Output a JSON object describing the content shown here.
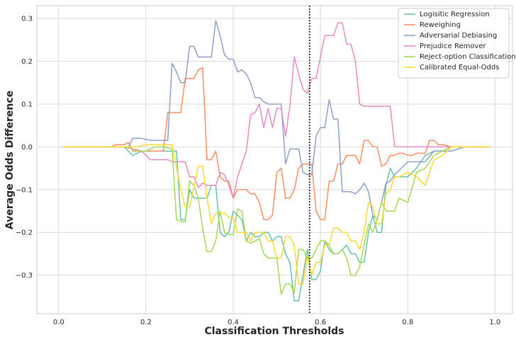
{
  "chart_data": {
    "type": "line",
    "title": "",
    "xlabel": "Classification Thresholds",
    "ylabel": "Average Odds Difference",
    "xlim": [
      -0.05,
      1.04
    ],
    "ylim": [
      -0.39,
      0.33
    ],
    "xticks": [
      0.0,
      0.2,
      0.4,
      0.6,
      0.8,
      1.0
    ],
    "xtick_labels": [
      "0.0",
      "0.2",
      "0.4",
      "0.6",
      "0.8",
      "1.0"
    ],
    "yticks": [
      -0.3,
      -0.2,
      -0.1,
      0.0,
      0.1,
      0.2,
      0.3
    ],
    "ytick_labels": [
      "−0.3",
      "−0.2",
      "−0.1",
      "0.0",
      "0.1",
      "0.2",
      "0.3"
    ],
    "grid": true,
    "legend_position": "top-right",
    "vline": {
      "x": 0.575,
      "style": "dotted",
      "color": "#222222"
    },
    "series": [
      {
        "name": "Logisitic Regression",
        "color": "#66c2a5",
        "x": [
          0.01,
          0.15,
          0.17,
          0.19,
          0.21,
          0.23,
          0.25,
          0.27,
          0.28,
          0.29,
          0.3,
          0.31,
          0.32,
          0.34,
          0.35,
          0.36,
          0.37,
          0.38,
          0.39,
          0.4,
          0.41,
          0.42,
          0.43,
          0.44,
          0.45,
          0.46,
          0.47,
          0.48,
          0.49,
          0.5,
          0.51,
          0.52,
          0.53,
          0.54,
          0.55,
          0.56,
          0.57,
          0.58,
          0.59,
          0.6,
          0.61,
          0.62,
          0.63,
          0.64,
          0.65,
          0.66,
          0.67,
          0.68,
          0.69,
          0.7,
          0.71,
          0.72,
          0.73,
          0.74,
          0.75,
          0.76,
          0.77,
          0.78,
          0.8,
          0.82,
          0.84,
          0.86,
          0.88,
          0.9,
          0.99
        ],
        "y": [
          0,
          0,
          -0.02,
          -0.01,
          -0.01,
          -0.01,
          -0.01,
          -0.01,
          -0.17,
          -0.17,
          -0.1,
          -0.12,
          -0.12,
          -0.12,
          -0.09,
          -0.09,
          -0.2,
          -0.21,
          -0.2,
          -0.15,
          -0.16,
          -0.17,
          -0.22,
          -0.2,
          -0.21,
          -0.21,
          -0.2,
          -0.2,
          -0.22,
          -0.21,
          -0.21,
          -0.25,
          -0.27,
          -0.36,
          -0.36,
          -0.3,
          -0.24,
          -0.31,
          -0.31,
          -0.29,
          -0.22,
          -0.24,
          -0.25,
          -0.25,
          -0.24,
          -0.23,
          -0.25,
          -0.25,
          -0.27,
          -0.27,
          -0.2,
          -0.16,
          -0.2,
          -0.2,
          -0.09,
          -0.05,
          -0.07,
          -0.07,
          -0.07,
          -0.05,
          -0.02,
          -0.01,
          -0.01,
          0,
          0
        ]
      },
      {
        "name": "Reweighing",
        "color": "#fc8d62",
        "x": [
          0.01,
          0.12,
          0.13,
          0.15,
          0.16,
          0.17,
          0.18,
          0.2,
          0.22,
          0.24,
          0.25,
          0.26,
          0.27,
          0.28,
          0.29,
          0.3,
          0.31,
          0.32,
          0.33,
          0.34,
          0.35,
          0.36,
          0.37,
          0.38,
          0.39,
          0.4,
          0.41,
          0.42,
          0.43,
          0.44,
          0.45,
          0.46,
          0.47,
          0.48,
          0.49,
          0.5,
          0.51,
          0.52,
          0.53,
          0.54,
          0.55,
          0.56,
          0.57,
          0.58,
          0.59,
          0.6,
          0.61,
          0.62,
          0.63,
          0.64,
          0.65,
          0.66,
          0.67,
          0.68,
          0.69,
          0.7,
          0.71,
          0.72,
          0.73,
          0.74,
          0.75,
          0.76,
          0.77,
          0.78,
          0.79,
          0.8,
          0.81,
          0.82,
          0.83,
          0.84,
          0.85,
          0.86,
          0.87,
          0.88,
          0.9,
          0.99
        ],
        "y": [
          0,
          0,
          0.005,
          0.005,
          0.01,
          -0.01,
          -0.01,
          -0.01,
          -0.01,
          -0.01,
          0.08,
          0.08,
          0.08,
          0.08,
          0.16,
          0.16,
          0.16,
          0.18,
          0.185,
          -0.03,
          -0.03,
          -0.01,
          -0.07,
          -0.08,
          -0.08,
          -0.12,
          -0.1,
          -0.1,
          -0.1,
          -0.11,
          -0.11,
          -0.13,
          -0.17,
          -0.17,
          -0.16,
          -0.06,
          -0.05,
          -0.12,
          -0.12,
          -0.1,
          -0.05,
          -0.04,
          -0.04,
          -0.04,
          -0.15,
          -0.17,
          -0.17,
          -0.08,
          -0.08,
          -0.04,
          -0.04,
          -0.02,
          -0.02,
          -0.02,
          -0.04,
          0.015,
          0.015,
          0,
          0,
          -0.045,
          -0.04,
          -0.02,
          -0.02,
          -0.015,
          -0.015,
          -0.02,
          -0.02,
          -0.015,
          -0.015,
          -0.015,
          0.015,
          0.015,
          0.005,
          0.005,
          0,
          0
        ]
      },
      {
        "name": "Adversarial Debiasing",
        "color": "#8da0cb",
        "x": [
          0.01,
          0.16,
          0.17,
          0.19,
          0.21,
          0.23,
          0.25,
          0.26,
          0.27,
          0.28,
          0.29,
          0.3,
          0.31,
          0.32,
          0.33,
          0.35,
          0.36,
          0.37,
          0.38,
          0.39,
          0.4,
          0.41,
          0.42,
          0.43,
          0.44,
          0.45,
          0.46,
          0.47,
          0.48,
          0.49,
          0.5,
          0.51,
          0.52,
          0.53,
          0.54,
          0.55,
          0.56,
          0.57,
          0.58,
          0.59,
          0.6,
          0.61,
          0.62,
          0.63,
          0.64,
          0.65,
          0.66,
          0.67,
          0.68,
          0.69,
          0.7,
          0.71,
          0.72,
          0.73,
          0.74,
          0.75,
          0.76,
          0.77,
          0.78,
          0.8,
          0.82,
          0.84,
          0.86,
          0.88,
          0.9,
          0.93,
          0.99
        ],
        "y": [
          0,
          0,
          0.02,
          0.02,
          0.015,
          0.015,
          0.015,
          0.195,
          0.175,
          0.15,
          0.15,
          0.235,
          0.235,
          0.21,
          0.21,
          0.21,
          0.295,
          0.26,
          0.215,
          0.205,
          0.205,
          0.175,
          0.18,
          0.17,
          0.15,
          0.115,
          0.115,
          0.105,
          0.1,
          0.1,
          0.1,
          0.1,
          -0.04,
          -0.005,
          -0.005,
          -0.005,
          -0.06,
          -0.065,
          -0.065,
          0.025,
          0.045,
          0.045,
          0.11,
          0.065,
          0.065,
          -0.105,
          -0.105,
          -0.105,
          -0.11,
          -0.1,
          -0.085,
          -0.105,
          -0.16,
          -0.17,
          -0.13,
          -0.085,
          -0.08,
          -0.065,
          -0.055,
          -0.035,
          -0.035,
          -0.035,
          -0.01,
          -0.01,
          -0.01,
          0,
          0
        ]
      },
      {
        "name": "Prejudice Remover",
        "color": "#e78ac3",
        "x": [
          0.01,
          0.15,
          0.17,
          0.19,
          0.21,
          0.23,
          0.25,
          0.26,
          0.27,
          0.28,
          0.29,
          0.3,
          0.31,
          0.32,
          0.33,
          0.34,
          0.35,
          0.36,
          0.37,
          0.38,
          0.39,
          0.4,
          0.41,
          0.42,
          0.43,
          0.44,
          0.45,
          0.46,
          0.47,
          0.48,
          0.49,
          0.5,
          0.51,
          0.52,
          0.53,
          0.54,
          0.55,
          0.56,
          0.57,
          0.58,
          0.59,
          0.6,
          0.61,
          0.62,
          0.63,
          0.64,
          0.65,
          0.66,
          0.67,
          0.68,
          0.69,
          0.7,
          0.71,
          0.72,
          0.73,
          0.74,
          0.75,
          0.76,
          0.77,
          0.78,
          0.8,
          0.82,
          0.84,
          0.86,
          0.88,
          0.99
        ],
        "y": [
          0,
          0,
          -0.005,
          -0.01,
          -0.03,
          -0.03,
          -0.03,
          -0.035,
          -0.035,
          -0.035,
          -0.035,
          -0.07,
          -0.07,
          -0.095,
          -0.085,
          -0.09,
          -0.09,
          -0.09,
          -0.06,
          -0.065,
          -0.09,
          -0.12,
          -0.07,
          -0.04,
          -0.01,
          0.075,
          0.08,
          0.1,
          0.045,
          0.09,
          0.045,
          0.09,
          0.09,
          0.025,
          0.095,
          0.21,
          0.17,
          0.135,
          0.125,
          0.16,
          0.16,
          0.21,
          0.26,
          0.26,
          0.26,
          0.29,
          0.29,
          0.24,
          0.24,
          0.2,
          0.1,
          0.095,
          0.095,
          0.095,
          0.095,
          0.095,
          0.095,
          0.095,
          0,
          0,
          0,
          0,
          0,
          0,
          0,
          0
        ]
      },
      {
        "name": "Reject-option Classification",
        "color": "#a6d854",
        "x": [
          0.01,
          0.16,
          0.18,
          0.2,
          0.22,
          0.24,
          0.26,
          0.27,
          0.28,
          0.29,
          0.3,
          0.31,
          0.32,
          0.33,
          0.34,
          0.35,
          0.36,
          0.37,
          0.38,
          0.39,
          0.4,
          0.41,
          0.42,
          0.43,
          0.44,
          0.45,
          0.46,
          0.47,
          0.48,
          0.49,
          0.5,
          0.51,
          0.52,
          0.53,
          0.54,
          0.55,
          0.56,
          0.57,
          0.58,
          0.59,
          0.6,
          0.61,
          0.62,
          0.63,
          0.64,
          0.65,
          0.66,
          0.67,
          0.68,
          0.69,
          0.7,
          0.71,
          0.72,
          0.73,
          0.74,
          0.75,
          0.76,
          0.77,
          0.78,
          0.8,
          0.82,
          0.84,
          0.86,
          0.88,
          0.9,
          0.99
        ],
        "y": [
          0,
          0,
          -0.01,
          -0.01,
          0,
          0,
          -0.005,
          -0.17,
          -0.175,
          -0.175,
          -0.08,
          -0.09,
          -0.12,
          -0.19,
          -0.245,
          -0.245,
          -0.22,
          -0.15,
          -0.2,
          -0.205,
          -0.205,
          -0.145,
          -0.15,
          -0.22,
          -0.225,
          -0.22,
          -0.215,
          -0.25,
          -0.26,
          -0.26,
          -0.26,
          -0.345,
          -0.32,
          -0.32,
          -0.34,
          -0.24,
          -0.24,
          -0.26,
          -0.26,
          -0.24,
          -0.22,
          -0.22,
          -0.23,
          -0.25,
          -0.25,
          -0.24,
          -0.26,
          -0.3,
          -0.3,
          -0.28,
          -0.23,
          -0.18,
          -0.2,
          -0.17,
          -0.13,
          -0.15,
          -0.15,
          -0.15,
          -0.12,
          -0.13,
          -0.06,
          -0.05,
          -0.02,
          -0.01,
          0,
          0
        ]
      },
      {
        "name": "Calibrated Equal-Odds",
        "color": "#ffd92f",
        "x": [
          0.01,
          0.16,
          0.18,
          0.2,
          0.22,
          0.24,
          0.26,
          0.28,
          0.29,
          0.3,
          0.31,
          0.32,
          0.33,
          0.34,
          0.35,
          0.36,
          0.37,
          0.38,
          0.39,
          0.4,
          0.41,
          0.42,
          0.43,
          0.44,
          0.45,
          0.46,
          0.47,
          0.48,
          0.49,
          0.5,
          0.51,
          0.52,
          0.53,
          0.54,
          0.55,
          0.56,
          0.57,
          0.58,
          0.59,
          0.6,
          0.61,
          0.62,
          0.63,
          0.64,
          0.65,
          0.66,
          0.67,
          0.68,
          0.69,
          0.7,
          0.71,
          0.72,
          0.73,
          0.74,
          0.75,
          0.76,
          0.77,
          0.78,
          0.8,
          0.82,
          0.84,
          0.86,
          0.88,
          0.9,
          0.99
        ],
        "y": [
          0,
          0,
          0,
          0.005,
          0.005,
          0.005,
          0.005,
          -0.1,
          -0.14,
          -0.14,
          -0.095,
          -0.045,
          -0.045,
          -0.12,
          -0.18,
          -0.155,
          -0.155,
          -0.155,
          -0.165,
          -0.165,
          -0.2,
          -0.2,
          -0.2,
          -0.22,
          -0.2,
          -0.2,
          -0.2,
          -0.22,
          -0.22,
          -0.26,
          -0.26,
          -0.21,
          -0.21,
          -0.23,
          -0.32,
          -0.32,
          -0.255,
          -0.3,
          -0.27,
          -0.27,
          -0.23,
          -0.23,
          -0.19,
          -0.19,
          -0.2,
          -0.2,
          -0.22,
          -0.22,
          -0.24,
          -0.2,
          -0.13,
          -0.14,
          -0.18,
          -0.18,
          -0.11,
          -0.1,
          -0.07,
          -0.07,
          -0.06,
          -0.07,
          -0.09,
          -0.03,
          -0.02,
          0,
          0
        ]
      }
    ]
  }
}
